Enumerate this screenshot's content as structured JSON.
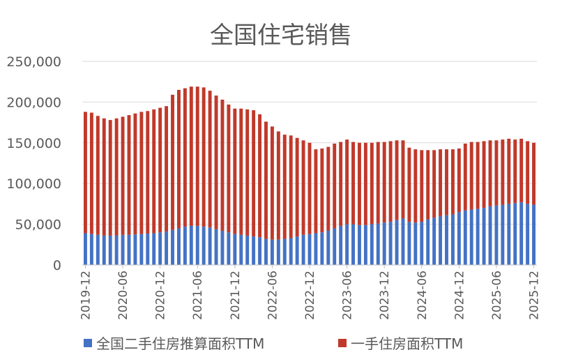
{
  "chart_data": {
    "type": "bar",
    "stacked": true,
    "title": "全国住宅销售",
    "xlabel": "",
    "ylabel": "",
    "ylim": [
      0,
      250000
    ],
    "yticks": [
      "0",
      "50,000",
      "100,000",
      "150,000",
      "200,000",
      "250,000"
    ],
    "x_tick_labels": [
      "2019-12",
      "2020-06",
      "2020-12",
      "2021-06",
      "2021-12",
      "2022-06",
      "2022-12",
      "2023-06",
      "2023-12",
      "2024-06",
      "2024-12",
      "2025-06",
      "2025-12"
    ],
    "grid": true,
    "legend": "bottom",
    "categories": [
      "2019-12",
      "2020-01",
      "2020-02",
      "2020-03",
      "2020-04",
      "2020-05",
      "2020-06",
      "2020-07",
      "2020-08",
      "2020-09",
      "2020-10",
      "2020-11",
      "2020-12",
      "2021-01",
      "2021-02",
      "2021-03",
      "2021-04",
      "2021-05",
      "2021-06",
      "2021-07",
      "2021-08",
      "2021-09",
      "2021-10",
      "2021-11",
      "2021-12",
      "2022-01",
      "2022-02",
      "2022-03",
      "2022-04",
      "2022-05",
      "2022-06",
      "2022-07",
      "2022-08",
      "2022-09",
      "2022-10",
      "2022-11",
      "2022-12",
      "2023-01",
      "2023-02",
      "2023-03",
      "2023-04",
      "2023-05",
      "2023-06",
      "2023-07",
      "2023-08",
      "2023-09",
      "2023-10",
      "2023-11",
      "2023-12",
      "2024-01",
      "2024-02",
      "2024-03",
      "2024-04",
      "2024-05",
      "2024-06",
      "2024-07",
      "2024-08",
      "2024-09",
      "2024-10",
      "2024-11",
      "2024-12",
      "2025-01",
      "2025-02",
      "2025-03",
      "2025-04",
      "2025-05",
      "2025-06",
      "2025-07",
      "2025-08",
      "2025-09",
      "2025-10",
      "2025-11",
      "2025-12"
    ],
    "series": [
      {
        "name": "全国二手住房推算面积TTM",
        "color": "#4472C4",
        "values": [
          39000,
          38000,
          37000,
          36000,
          36000,
          36000,
          37000,
          37000,
          37500,
          38000,
          38500,
          39000,
          40000,
          41000,
          43000,
          45000,
          47000,
          48000,
          48000,
          47000,
          46000,
          44000,
          42000,
          40000,
          38000,
          37000,
          36000,
          35000,
          34000,
          32000,
          31000,
          31000,
          32000,
          33000,
          35000,
          37000,
          38000,
          39000,
          40000,
          42000,
          45000,
          48000,
          50000,
          50000,
          49000,
          49000,
          50000,
          51000,
          52000,
          53000,
          55000,
          57000,
          53000,
          52000,
          53000,
          56000,
          58000,
          60000,
          61000,
          62000,
          65000,
          67000,
          68000,
          69000,
          70000,
          72000,
          73000,
          74000,
          75000,
          76000,
          77000,
          75000,
          74000
        ]
      },
      {
        "name": "一手住房面积TTM",
        "color": "#C0392B",
        "values": [
          149000,
          149000,
          146000,
          144000,
          142000,
          144000,
          145000,
          147000,
          148500,
          150000,
          150500,
          152000,
          153000,
          154000,
          166000,
          170000,
          170000,
          171000,
          171000,
          171000,
          168000,
          164000,
          161000,
          157000,
          154000,
          155000,
          155000,
          155000,
          151000,
          144000,
          139000,
          133000,
          128000,
          126000,
          121000,
          116000,
          112000,
          103000,
          103000,
          103000,
          104000,
          103000,
          104000,
          101000,
          101000,
          101000,
          100000,
          100000,
          99000,
          99000,
          98000,
          96000,
          91000,
          90000,
          88000,
          85000,
          83000,
          82000,
          81000,
          80000,
          78000,
          82000,
          83000,
          82000,
          82000,
          81000,
          80000,
          80000,
          80000,
          78000,
          78000,
          77000,
          76000
        ]
      }
    ]
  }
}
